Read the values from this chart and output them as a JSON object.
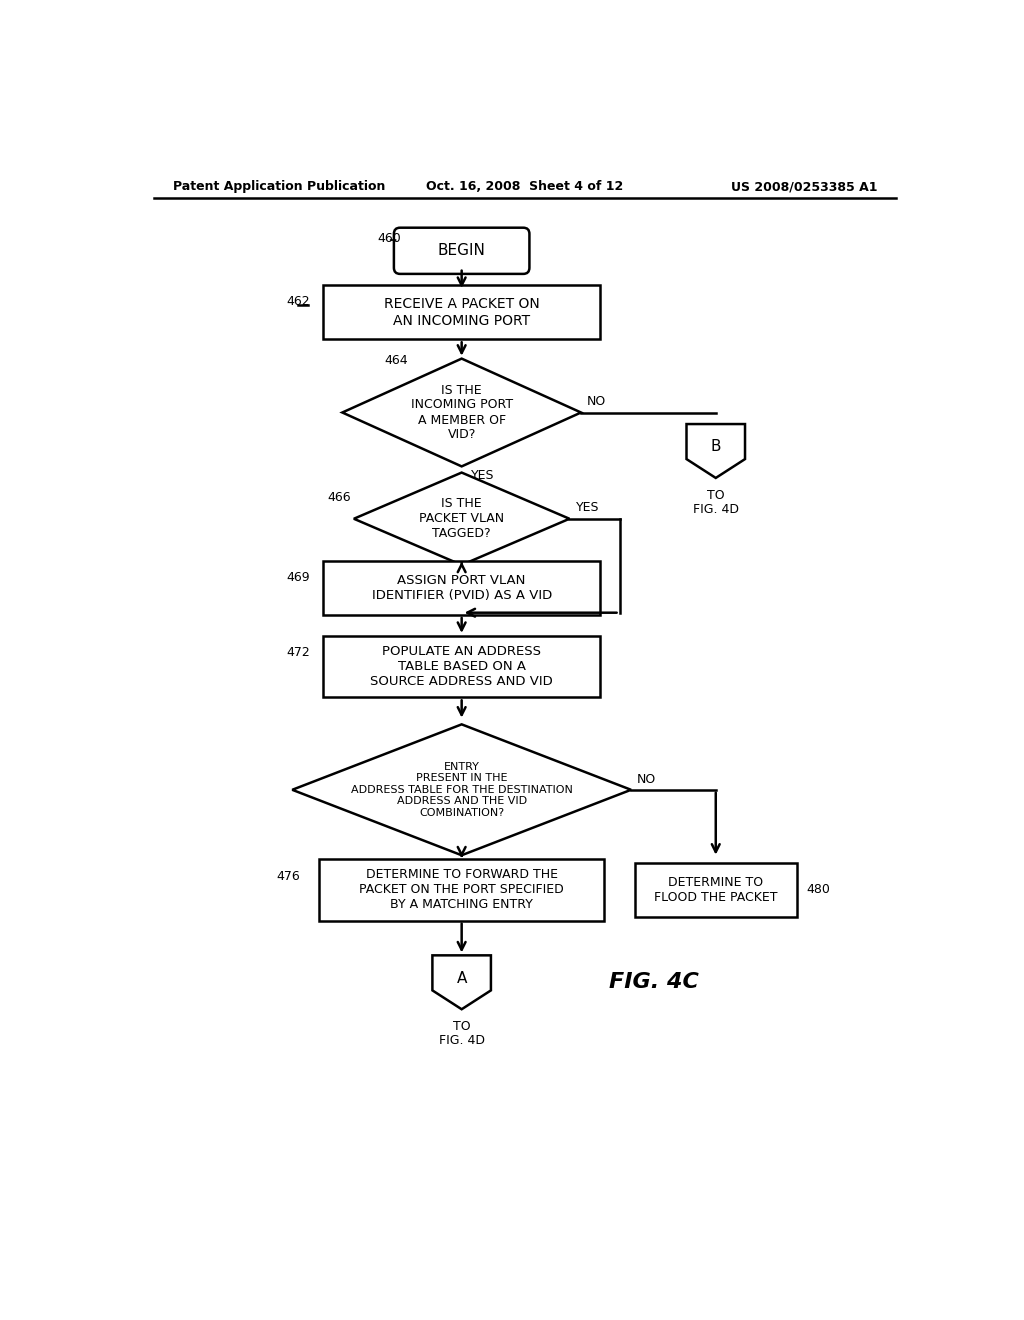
{
  "header_left": "Patent Application Publication",
  "header_center": "Oct. 16, 2008  Sheet 4 of 12",
  "header_right": "US 2008/0253385 A1",
  "figure_label": "FIG. 4C",
  "bg_color": "#ffffff",
  "line_color": "#000000"
}
